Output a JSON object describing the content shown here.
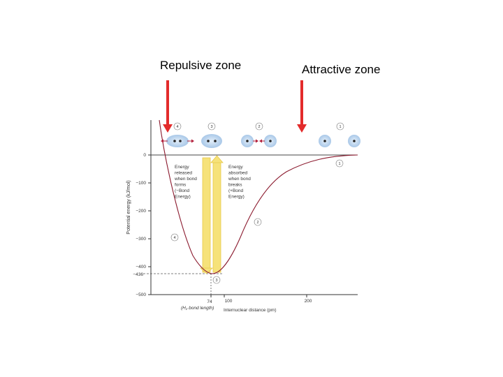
{
  "labels": {
    "repulsive_zone": "Repulsive zone",
    "attractive_zone": "Attractive zone"
  },
  "axis": {
    "ylabel": "Potential energy (kJ/mol)",
    "xlabel": "Internuclear distance (pm)",
    "y_ticks": [
      "0",
      "−100",
      "−200",
      "−300",
      "−400",
      "−436",
      "−500"
    ],
    "x_ticks": [
      "74",
      "100",
      "200"
    ],
    "bond_length_note": "(H₂ bond length)"
  },
  "annotations": {
    "released": [
      "Energy",
      "released",
      "when bond",
      "forms",
      "(−Bond",
      "Energy)"
    ],
    "absorbed": [
      "Energy",
      "absorbed",
      "when bond",
      "breaks",
      "(+Bond",
      "Energy)"
    ]
  },
  "markers": {
    "m1": "1",
    "m2": "2",
    "m3": "3",
    "m4": "4"
  },
  "colors": {
    "arrow_red": "#e32b2b",
    "curve": "#8b1a2e",
    "energy_bar": "#f6e27a",
    "atom_cloud": "#b9d3ec"
  }
}
